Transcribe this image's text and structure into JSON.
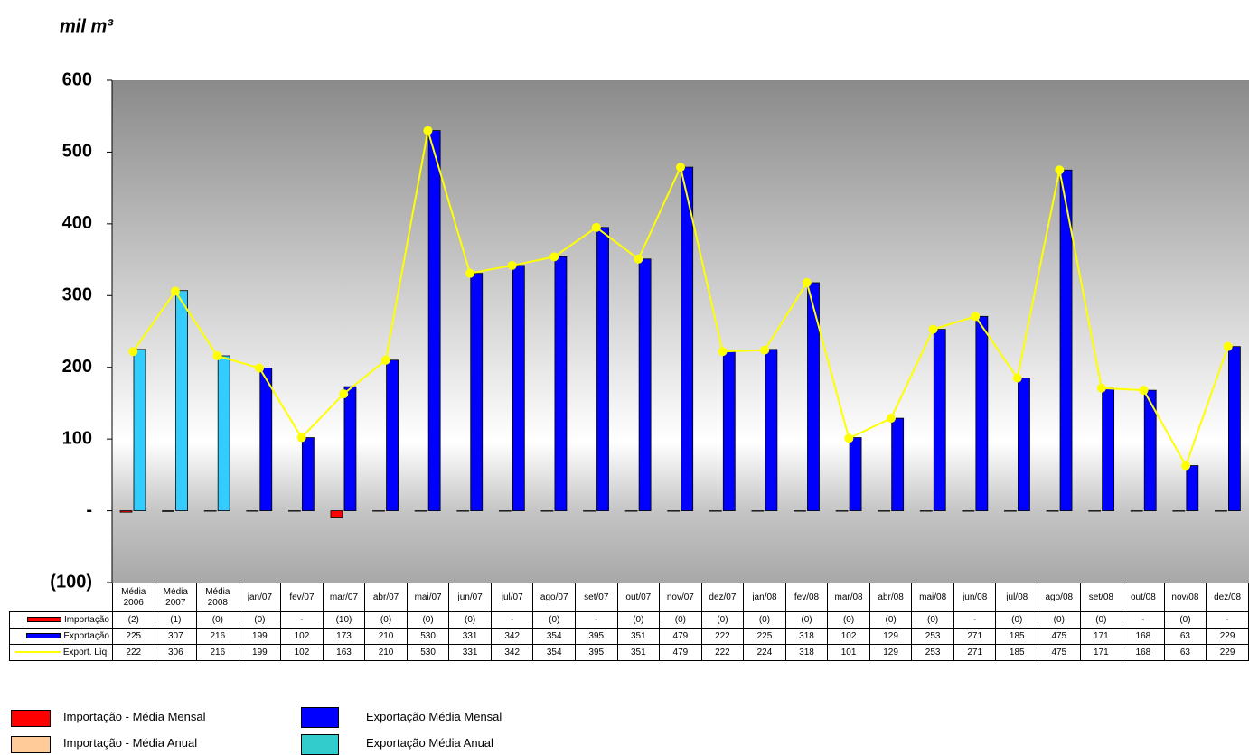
{
  "chart_data": {
    "type": "bar",
    "y_label": "mil m³",
    "categories": [
      "Média 2006",
      "Média 2007",
      "Média 2008",
      "jan/07",
      "fev/07",
      "mar/07",
      "abr/07",
      "mai/07",
      "jun/07",
      "jul/07",
      "ago/07",
      "set/07",
      "out/07",
      "nov/07",
      "dez/07",
      "jan/08",
      "fev/08",
      "mar/08",
      "abr/08",
      "mai/08",
      "jun/08",
      "jul/08",
      "ago/08",
      "set/08",
      "out/08",
      "nov/08",
      "dez/08"
    ],
    "series": [
      {
        "name": "Importação",
        "type": "bar",
        "color": "#ff0000",
        "values": [
          -2,
          -1,
          -0.2,
          -0.2,
          0,
          -10,
          -0.2,
          -0.2,
          -0.2,
          0,
          -0.2,
          0,
          -0.2,
          -0.2,
          -0.2,
          -0.2,
          -0.2,
          -0.2,
          -0.2,
          -0.2,
          0,
          -0.2,
          -0.2,
          -0.2,
          0,
          -0.2,
          0
        ],
        "value_labels": [
          "(2)",
          "(1)",
          "(0)",
          "(0)",
          "-",
          "(10)",
          "(0)",
          "(0)",
          "(0)",
          "-",
          "(0)",
          "-",
          "(0)",
          "(0)",
          "(0)",
          "(0)",
          "(0)",
          "(0)",
          "(0)",
          "(0)",
          "-",
          "(0)",
          "(0)",
          "(0)",
          "-",
          "(0)",
          "-"
        ]
      },
      {
        "name": "Exportação",
        "type": "bar",
        "color": "#0000ff",
        "colors": [
          "#33ccff",
          "#33ccff",
          "#33ccff",
          "#0000ff",
          "#0000ff",
          "#0000ff",
          "#0000ff",
          "#0000ff",
          "#0000ff",
          "#0000ff",
          "#0000ff",
          "#0000ff",
          "#0000ff",
          "#0000ff",
          "#0000ff",
          "#0000ff",
          "#0000ff",
          "#0000ff",
          "#0000ff",
          "#0000ff",
          "#0000ff",
          "#0000ff",
          "#0000ff",
          "#0000ff",
          "#0000ff",
          "#0000ff",
          "#0000ff"
        ],
        "values": [
          225,
          307,
          216,
          199,
          102,
          173,
          210,
          530,
          331,
          342,
          354,
          395,
          351,
          479,
          222,
          225,
          318,
          102,
          129,
          253,
          271,
          185,
          475,
          171,
          168,
          63,
          229
        ]
      },
      {
        "name": "Export. Líq.",
        "type": "line",
        "color": "#ffff00",
        "values": [
          222,
          306,
          216,
          199,
          102,
          163,
          210,
          530,
          331,
          342,
          354,
          395,
          351,
          479,
          222,
          224,
          318,
          101,
          129,
          253,
          271,
          185,
          475,
          171,
          168,
          63,
          229
        ]
      }
    ],
    "ylim": [
      -100,
      600
    ],
    "yticks": [
      {
        "value": -100,
        "label": "(100)"
      },
      {
        "value": 0,
        "label": "-"
      },
      100,
      200,
      300,
      400,
      500,
      600
    ],
    "legend": [
      {
        "name": "Importação - Média Mensal",
        "color": "#ff0000"
      },
      {
        "name": "Importação - Média Anual",
        "color": "#ffcc99"
      },
      {
        "name": "Exportação Média Mensal",
        "color": "#0000ff"
      },
      {
        "name": "Exportação Média Anual",
        "color": "#33cccc"
      }
    ]
  }
}
